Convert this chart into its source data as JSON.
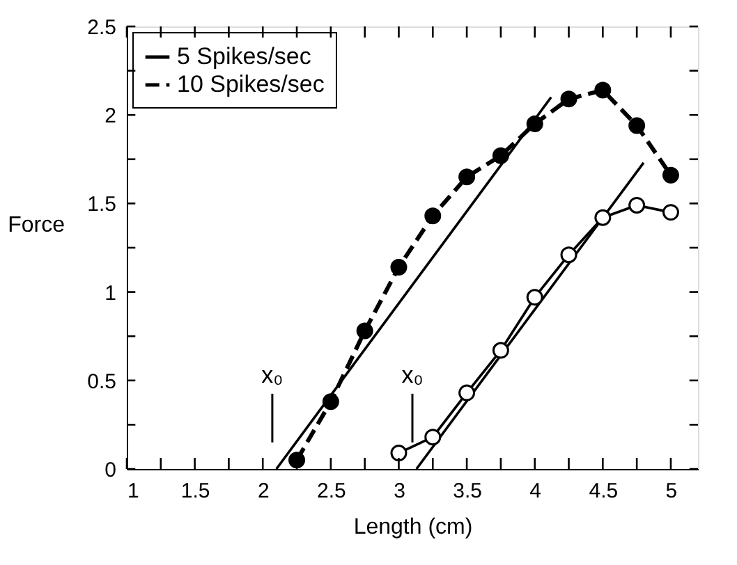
{
  "chart_data": {
    "type": "line",
    "xlabel": "Length (cm)",
    "ylabel": "Force",
    "xlim": [
      1,
      5.2
    ],
    "ylim": [
      0,
      2.5
    ],
    "xticks": [
      1,
      {
        "value": 1.25,
        "label": null
      },
      1.5,
      {
        "value": 1.75,
        "label": null
      },
      2,
      {
        "value": 2.25,
        "label": null
      },
      2.5,
      {
        "value": 2.75,
        "label": null
      },
      3,
      {
        "value": 3.25,
        "label": null
      },
      3.5,
      {
        "value": 3.75,
        "label": null
      },
      4,
      {
        "value": 4.25,
        "label": null
      },
      4.5,
      {
        "value": 4.75,
        "label": null
      },
      5
    ],
    "yticks": [
      0,
      {
        "value": 0.25,
        "label": null
      },
      0.5,
      {
        "value": 0.75,
        "label": null
      },
      1,
      {
        "value": 1.25,
        "label": null
      },
      1.5,
      {
        "value": 1.75,
        "label": null
      },
      2,
      {
        "value": 2.25,
        "label": null
      },
      2.5
    ],
    "grid": false,
    "legend": "top left",
    "series": [
      {
        "name": "5 Spikes/sec",
        "color": "#000000",
        "marker": "circle",
        "line_style": "solid",
        "x": [
          3.0,
          3.25,
          3.5,
          3.75,
          4.0,
          4.25,
          4.5,
          4.75,
          5.0
        ],
        "values": [
          0.09,
          0.18,
          0.43,
          0.67,
          0.97,
          1.21,
          1.42,
          1.49,
          1.45
        ]
      },
      {
        "name": "10 Spikes/sec",
        "color": "#000000",
        "marker": "circle",
        "line_style": "dashed",
        "x": [
          2.25,
          2.5,
          2.75,
          3.0,
          3.25,
          3.5,
          3.75,
          4.0,
          4.25,
          4.5,
          4.75,
          5.0
        ],
        "values": [
          0.05,
          0.38,
          0.78,
          1.14,
          1.43,
          1.65,
          1.77,
          1.95,
          2.09,
          2.14,
          1.94,
          1.66
        ]
      },
      {
        "type": "line",
        "color": "#000000",
        "marker": "none",
        "line_style": "solid",
        "x": [
          2.1,
          4.12
        ],
        "values": [
          0,
          2.1
        ]
      },
      {
        "type": "line",
        "color": "#000000",
        "marker": "none",
        "line_style": "solid",
        "x": [
          3.13,
          4.8
        ],
        "values": [
          0,
          1.73
        ]
      }
    ],
    "ref_lines": [
      {
        "axis": "x",
        "value": 2.07,
        "label": "x₀",
        "color": "#000000"
      },
      {
        "axis": "x",
        "value": 3.1,
        "label": "x₀",
        "color": "#000000"
      }
    ]
  }
}
